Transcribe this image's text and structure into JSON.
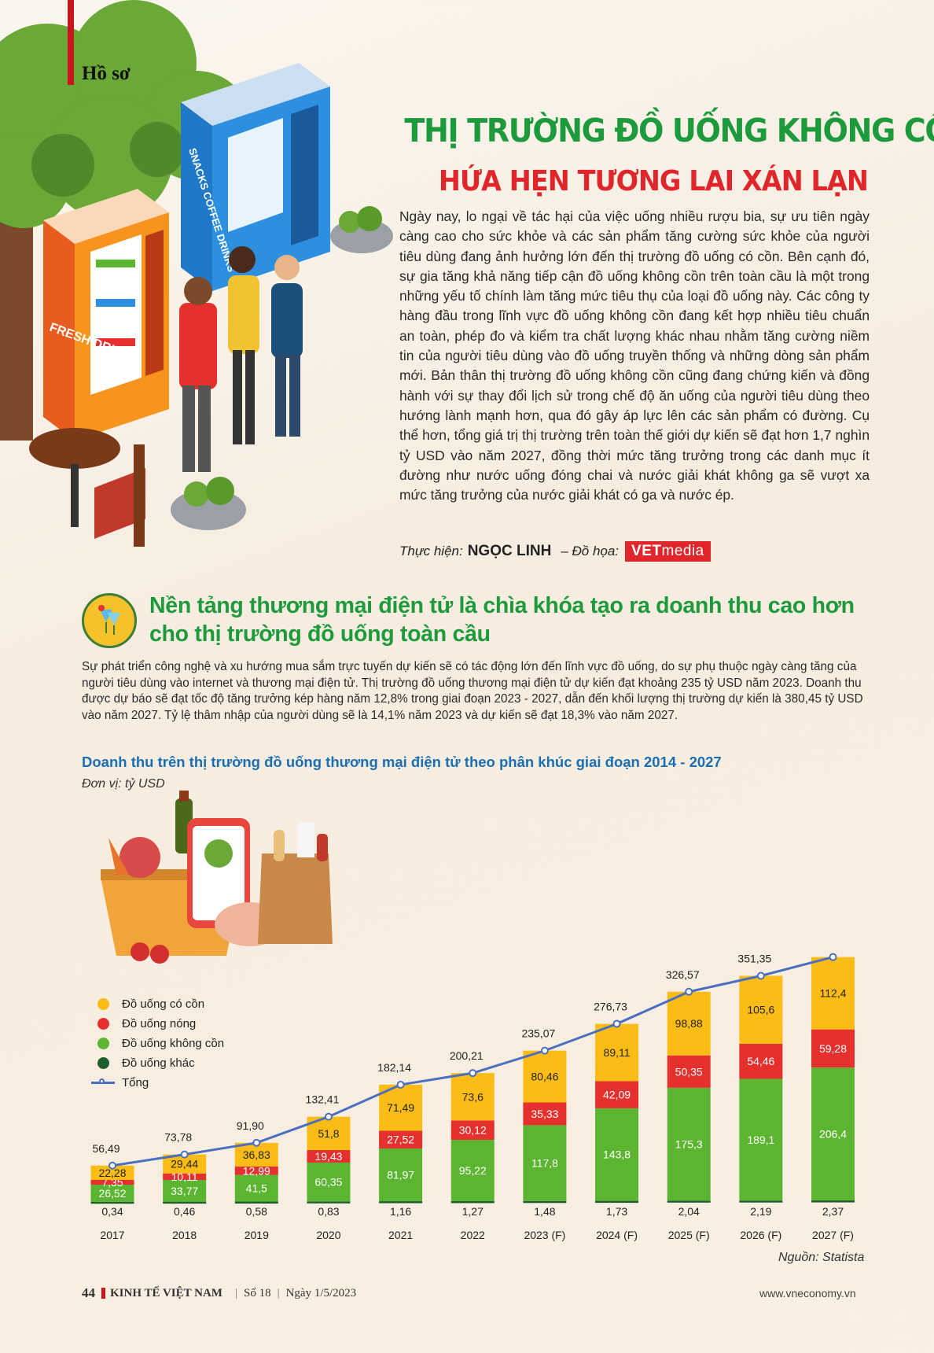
{
  "header": {
    "section": "Hồ sơ"
  },
  "title": {
    "line1": "THỊ TRƯỜNG ĐỒ UỐNG KHÔNG CỒN",
    "line2": "HỨA HẸN TƯƠNG LAI XÁN LẠN"
  },
  "illustration_text": {
    "red_machine": "FRESH DRINKS",
    "blue_machine": "SNACKS COFFEE DRINKS"
  },
  "intro": "Ngày nay, lo ngại về tác hại của việc uống nhiều rượu bia, sự ưu tiên ngày càng cao cho sức khỏe và các sản phẩm tăng cường sức khỏe của người tiêu dùng đang ảnh hưởng lớn đến thị trường đồ uống có cồn. Bên cạnh đó, sự gia tăng khả năng tiếp cận đồ uống không cồn trên toàn cầu là một trong những yếu tố chính làm tăng mức tiêu thụ của loại đồ uống này. Các công ty hàng đầu trong lĩnh vực đồ uống không cồn đang kết hợp nhiều tiêu chuẩn an toàn, phép đo và kiểm tra chất lượng khác nhau nhằm tăng cường niềm tin của người tiêu dùng vào đồ uống truyền thống và những dòng sản phẩm mới. Bản thân thị trường đồ uống không cồn cũng đang chứng kiến và đồng hành với sự thay đổi lịch sử trong chế độ ăn uống của người tiêu dùng theo hướng lành mạnh hơn, qua đó gây áp lực lên các sản phẩm có đường. Cụ thể hơn, tổng giá trị thị trường trên toàn thế giới dự kiến sẽ đạt hơn 1,7 nghìn tỷ USD vào năm 2027, đồng thời mức tăng trưởng trong các danh mục ít đường như nước uống đóng chai và nước giải khát không ga sẽ vượt xa mức tăng trưởng của nước giải khát có ga và nước ép.",
  "credits": {
    "by_label": "Thực hiện:",
    "author": "NGỌC LINH",
    "graphics_label": "– Đồ họa:",
    "logo_bold": "VET",
    "logo_rest": "media"
  },
  "section2": {
    "title": "Nền tảng thương mại điện tử là chìa khóa tạo ra doanh thu cao hơn cho thị trường đồ uống toàn cầu",
    "body": "Sự phát triển công nghệ và xu hướng mua sắm trực tuyến dự kiến sẽ có tác động lớn đến lĩnh vực đồ uống, do sự phụ thuộc ngày càng tăng của người tiêu dùng vào internet và thương mại điện tử. Thị trường đồ uống thương mại điện tử dự kiến đạt khoảng 235 tỷ USD năm 2023. Doanh thu được dự báo sẽ đạt tốc độ tăng trưởng kép hàng năm 12,8% trong giai đoạn 2023 - 2027, dẫn đến khối lượng thị trường dự kiến là 380,45 tỷ USD vào năm 2027. Tỷ lệ thâm nhập của người dùng sẽ là 14,1% năm 2023 và dự kiến sẽ đạt 18,3% vào năm 2027."
  },
  "chart_data": {
    "type": "bar",
    "stacked": true,
    "title": "Doanh thu trên thị trường đồ uống thương mại điện tử theo phân khúc giai đoạn 2014 - 2027",
    "unit": "Đơn vị: tỷ USD",
    "categories": [
      "2017",
      "2018",
      "2019",
      "2020",
      "2021",
      "2022",
      "2023 (F)",
      "2024 (F)",
      "2025 (F)",
      "2026 (F)",
      "2027 (F)"
    ],
    "series": [
      {
        "name": "Đồ uống khác",
        "color": "#1e5e2e",
        "values": [
          0.34,
          0.46,
          0.58,
          0.83,
          1.16,
          1.27,
          1.48,
          1.73,
          2.04,
          2.19,
          2.37
        ],
        "labels": [
          "0,34",
          "0,46",
          "0,58",
          "0,83",
          "1,16",
          "1,27",
          "1,48",
          "1,73",
          "2,04",
          "2,19",
          "2,37"
        ]
      },
      {
        "name": "Đồ uống không cồn",
        "color": "#5cb531",
        "values": [
          26.52,
          33.77,
          41.5,
          60.35,
          81.97,
          95.22,
          117.8,
          143.8,
          175.3,
          189.1,
          206.4
        ],
        "labels": [
          "26,52",
          "33,77",
          "41,5",
          "60,35",
          "81,97",
          "95,22",
          "117,8",
          "143,8",
          "175,3",
          "189,1",
          "206,4"
        ]
      },
      {
        "name": "Đồ uống nóng",
        "color": "#e5302e",
        "values": [
          7.35,
          10.11,
          12.99,
          19.43,
          27.52,
          30.12,
          35.33,
          42.09,
          50.35,
          54.46,
          59.28
        ],
        "labels": [
          "7,35",
          "10,11",
          "12,99",
          "19,43",
          "27,52",
          "30,12",
          "35,33",
          "42,09",
          "50,35",
          "54,46",
          "59,28"
        ]
      },
      {
        "name": "Đồ uống có cồn",
        "color": "#fbbd15",
        "values": [
          22.28,
          29.44,
          36.83,
          51.8,
          71.49,
          73.6,
          80.46,
          89.11,
          98.88,
          105.6,
          112.4
        ],
        "labels": [
          "22,28",
          "29,44",
          "36,83",
          "51,8",
          "71,49",
          "73,6",
          "80,46",
          "89,11",
          "98,88",
          "105,6",
          "112,4"
        ]
      }
    ],
    "total": {
      "name": "Tổng",
      "color": "#4a6fc0",
      "values": [
        56.49,
        73.78,
        91.9,
        132.41,
        182.14,
        200.21,
        235.07,
        276.73,
        326.57,
        351.35,
        380.45
      ],
      "labels": [
        "56,49",
        "73,78",
        "91,90",
        "132,41",
        "182,14",
        "200,21",
        "235,07",
        "276,73",
        "326,57",
        "351,35",
        ""
      ]
    },
    "legend_order": [
      "Đồ uống có cồn",
      "Đồ uống nóng",
      "Đồ uống không cồn",
      "Đồ uống khác",
      "Tổng"
    ],
    "legend_position": "left",
    "grid": false,
    "ylim": [
      0,
      380.45
    ]
  },
  "source": "Nguồn: Statista",
  "footer": {
    "page": "44",
    "magazine": "KINH TẾ VIỆT NAM",
    "issue": "Số 18",
    "date": "Ngày 1/5/2023",
    "site": "www.vneconomy.vn"
  }
}
